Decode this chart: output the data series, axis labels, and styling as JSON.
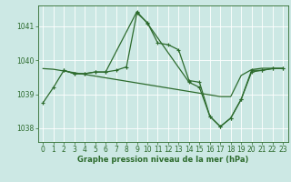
{
  "background_color": "#cce8e4",
  "grid_color": "#ffffff",
  "line_color": "#2d6b2d",
  "title": "Graphe pression niveau de la mer (hPa)",
  "ylim": [
    1037.6,
    1041.6
  ],
  "xlim": [
    -0.5,
    23.5
  ],
  "yticks": [
    1038,
    1039,
    1040,
    1041
  ],
  "xticks": [
    0,
    1,
    2,
    3,
    4,
    5,
    6,
    7,
    8,
    9,
    10,
    11,
    12,
    13,
    14,
    15,
    16,
    17,
    18,
    19,
    20,
    21,
    22,
    23
  ],
  "series1_x": [
    0,
    1,
    2,
    3,
    4,
    5,
    6,
    7,
    8,
    9,
    10,
    11,
    12,
    13,
    14,
    15,
    16,
    17,
    18,
    19,
    20,
    21,
    22,
    23
  ],
  "series1_y": [
    1038.75,
    1039.2,
    1039.7,
    1039.6,
    1039.6,
    1039.65,
    1039.65,
    1039.7,
    1039.8,
    1041.38,
    1041.1,
    1040.5,
    1040.45,
    1040.3,
    1039.4,
    1039.35,
    1038.35,
    1038.05,
    1038.3,
    1038.85,
    1039.65,
    1039.7,
    1039.75,
    1039.75
  ],
  "series2_x": [
    0,
    1,
    2,
    3,
    4,
    5,
    6,
    7,
    8,
    9,
    10,
    11,
    12,
    13,
    14,
    15,
    16,
    17,
    18,
    19,
    20,
    21,
    22,
    23
  ],
  "series2_y": [
    1039.75,
    1039.73,
    1039.68,
    1039.63,
    1039.58,
    1039.53,
    1039.48,
    1039.43,
    1039.38,
    1039.33,
    1039.28,
    1039.23,
    1039.18,
    1039.13,
    1039.08,
    1039.03,
    1038.98,
    1038.93,
    1038.93,
    1039.55,
    1039.72,
    1039.76,
    1039.76,
    1039.76
  ],
  "series3_x": [
    2,
    3,
    4,
    5,
    6,
    9,
    10,
    14,
    15,
    16,
    17,
    18,
    19,
    20,
    21,
    22,
    23
  ],
  "series3_y": [
    1039.7,
    1039.6,
    1039.6,
    1039.65,
    1039.65,
    1041.42,
    1041.08,
    1039.35,
    1039.2,
    1038.35,
    1038.05,
    1038.3,
    1038.85,
    1039.7,
    1039.7,
    1039.75,
    1039.75
  ],
  "tick_fontsize": 5.5,
  "title_fontsize": 6.0,
  "linewidth": 0.9,
  "markersize": 2.8
}
